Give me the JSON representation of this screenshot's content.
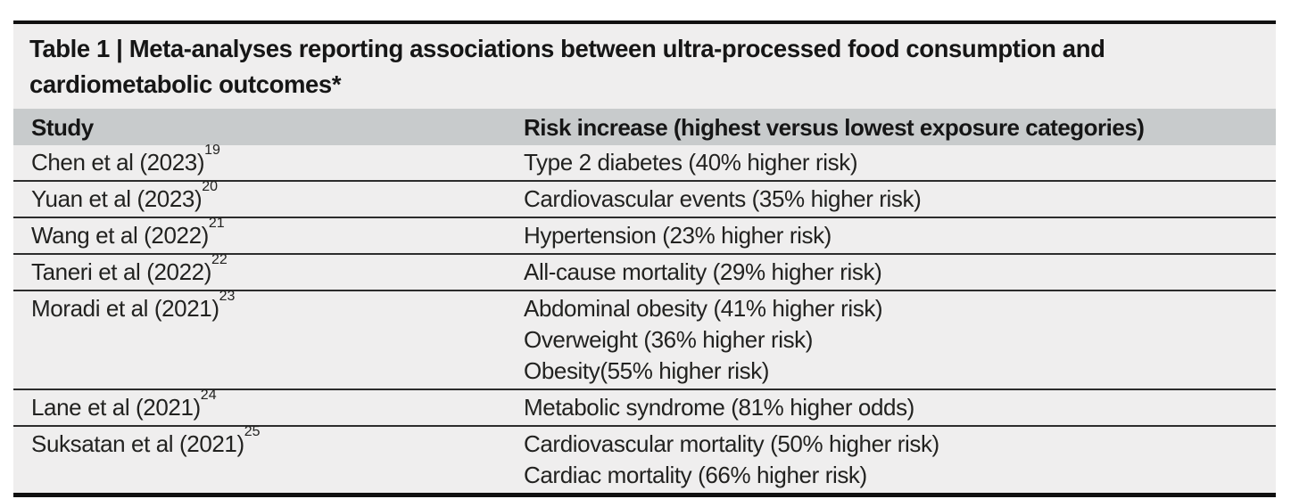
{
  "table": {
    "title_line1": "Table 1 | Meta-analyses reporting associations between ultra-processed food consumption and",
    "title_line2": "cardiometabolic outcomes*",
    "columns": [
      "Study",
      "Risk increase (highest versus lowest exposure categories)"
    ],
    "rows": [
      {
        "study": "Chen et al (2023)",
        "ref": "19",
        "outcomes": [
          "Type 2 diabetes (40% higher risk)"
        ]
      },
      {
        "study": "Yuan et al (2023)",
        "ref": "20",
        "outcomes": [
          "Cardiovascular events (35% higher risk)"
        ]
      },
      {
        "study": "Wang et al (2022)",
        "ref": "21",
        "outcomes": [
          "Hypertension (23% higher risk)"
        ]
      },
      {
        "study": "Taneri et al (2022)",
        "ref": "22",
        "outcomes": [
          "All-cause mortality (29% higher risk)"
        ]
      },
      {
        "study": "Moradi et al (2021)",
        "ref": "23",
        "outcomes": [
          "Abdominal obesity (41% higher risk)",
          "Overweight (36% higher risk)",
          "Obesity(55% higher risk)"
        ]
      },
      {
        "study": "Lane et al (2021)",
        "ref": "24",
        "outcomes": [
          "Metabolic syndrome (81% higher odds)"
        ]
      },
      {
        "study": "Suksatan et al (2021)",
        "ref": "25",
        "outcomes": [
          "Cardiovascular mortality (50% higher risk)",
          "Cardiac mortality (66% higher risk)"
        ]
      }
    ],
    "colors": {
      "rule": "#101010",
      "title_bg": "#efeeee",
      "header_bg": "#c8cbcc",
      "row_bg": "#efeeee",
      "separator": "#2c2c2c"
    }
  }
}
